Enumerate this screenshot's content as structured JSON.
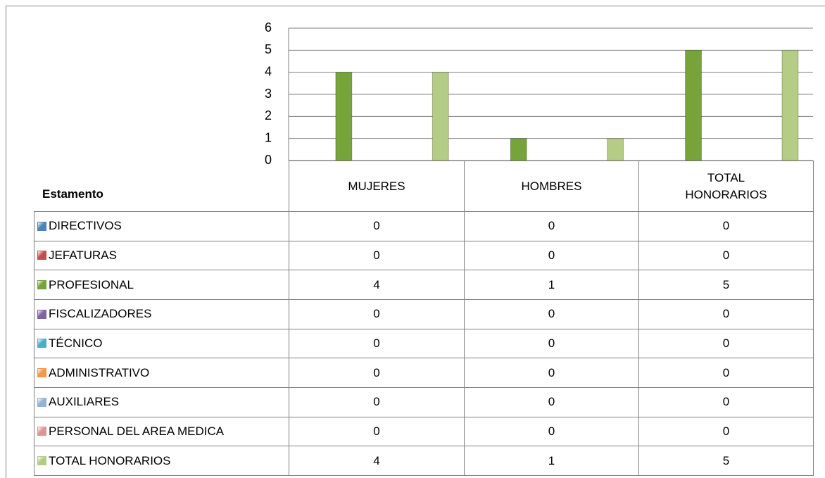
{
  "chart_data": {
    "type": "bar",
    "legend_title": "Estamento",
    "categories": [
      "MUJERES",
      "HOMBRES",
      "TOTAL HONORARIOS"
    ],
    "series": [
      {
        "name": "DIRECTIVOS",
        "color": "#4f81bd",
        "values": [
          0,
          0,
          0
        ]
      },
      {
        "name": "JEFATURAS",
        "color": "#c0504d",
        "values": [
          0,
          0,
          0
        ]
      },
      {
        "name": "PROFESIONAL",
        "color": "#76a33a",
        "values": [
          4,
          1,
          5
        ]
      },
      {
        "name": "FISCALIZADORES",
        "color": "#8064a2",
        "values": [
          0,
          0,
          0
        ]
      },
      {
        "name": "TÉCNICO",
        "color": "#4bacc6",
        "values": [
          0,
          0,
          0
        ]
      },
      {
        "name": "ADMINISTRATIVO",
        "color": "#f79646",
        "values": [
          0,
          0,
          0
        ]
      },
      {
        "name": "AUXILIARES",
        "color": "#95b3d7",
        "values": [
          0,
          0,
          0
        ]
      },
      {
        "name": "PERSONAL DEL AREA MEDICA",
        "color": "#d99694",
        "values": [
          0,
          0,
          0
        ]
      },
      {
        "name": "TOTAL HONORARIOS",
        "color": "#b5cc86",
        "values": [
          4,
          1,
          5
        ]
      }
    ],
    "ylim": [
      0,
      6
    ],
    "yticks": [
      0,
      1,
      2,
      3,
      4,
      5,
      6
    ],
    "grid": true
  }
}
